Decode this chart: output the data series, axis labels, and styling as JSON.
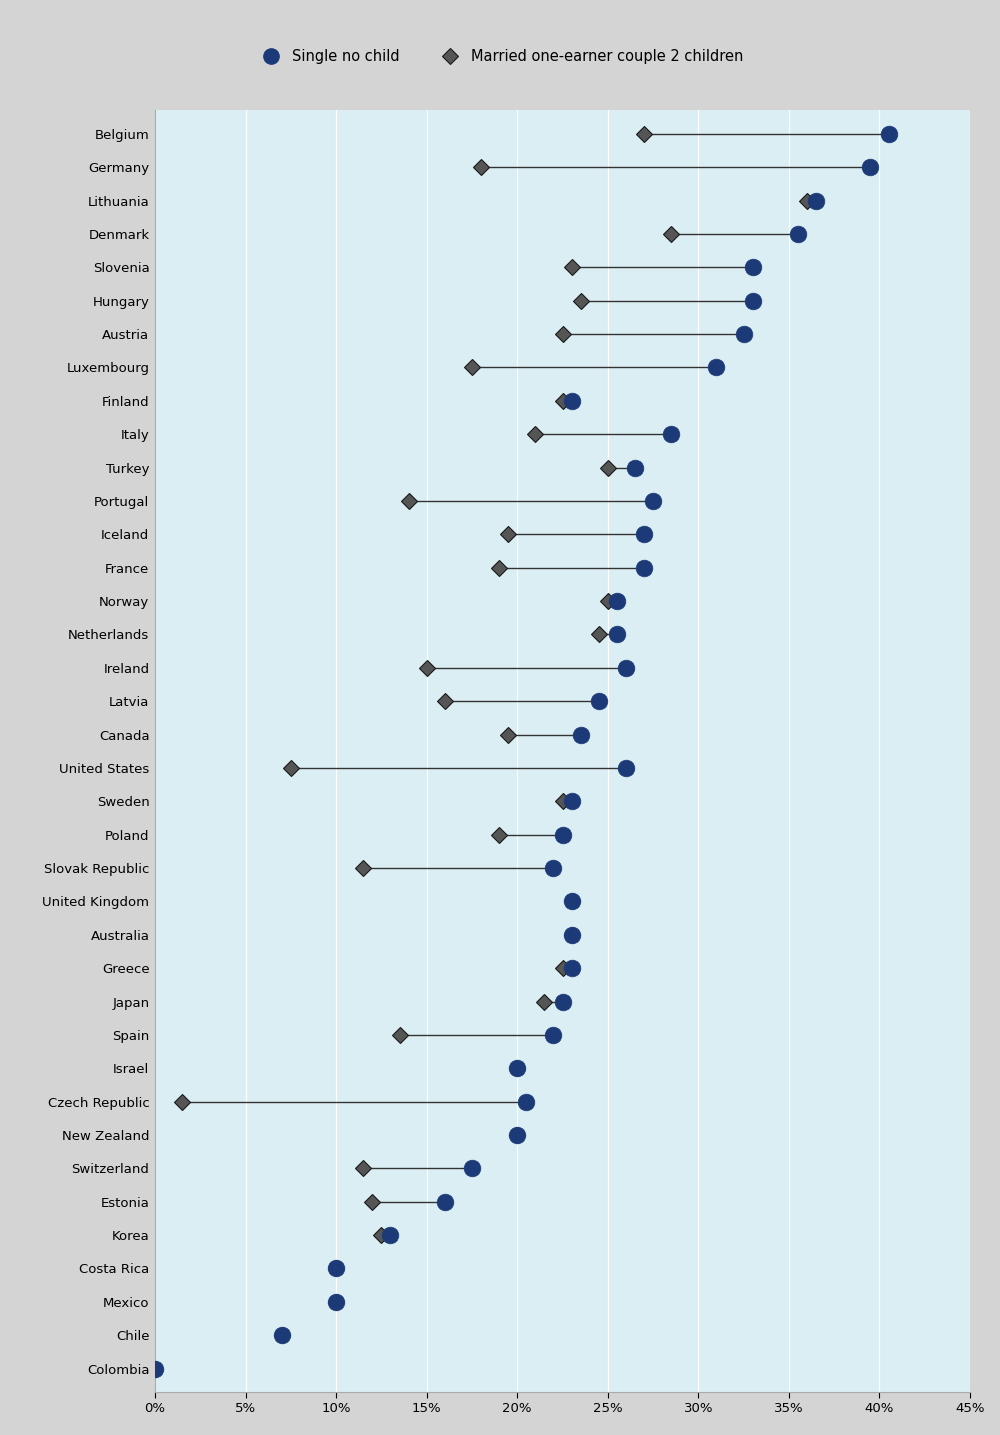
{
  "countries": [
    "Belgium",
    "Germany",
    "Lithuania",
    "Denmark",
    "Slovenia",
    "Hungary",
    "Austria",
    "Luxembourg",
    "Finland",
    "Italy",
    "Turkey",
    "Portugal",
    "Iceland",
    "France",
    "Norway",
    "Netherlands",
    "Ireland",
    "Latvia",
    "Canada",
    "United States",
    "Sweden",
    "Poland",
    "Slovak Republic",
    "United Kingdom",
    "Australia",
    "Greece",
    "Japan",
    "Spain",
    "Israel",
    "Czech Republic",
    "New Zealand",
    "Switzerland",
    "Estonia",
    "Korea",
    "Costa Rica",
    "Mexico",
    "Chile",
    "Colombia"
  ],
  "single_no_child": [
    40.5,
    39.5,
    36.5,
    35.5,
    33.0,
    33.0,
    32.5,
    31.0,
    23.0,
    28.5,
    26.5,
    27.5,
    27.0,
    27.0,
    25.5,
    25.5,
    26.0,
    24.5,
    23.5,
    26.0,
    23.0,
    22.5,
    22.0,
    23.0,
    23.0,
    23.0,
    22.5,
    22.0,
    20.0,
    20.5,
    20.0,
    17.5,
    16.0,
    13.0,
    10.0,
    10.0,
    7.0,
    0.0
  ],
  "married_couple": [
    27.0,
    18.0,
    36.0,
    28.5,
    23.0,
    23.5,
    22.5,
    17.5,
    22.5,
    21.0,
    25.0,
    14.0,
    19.5,
    19.0,
    25.0,
    24.5,
    15.0,
    16.0,
    19.5,
    7.5,
    22.5,
    19.0,
    11.5,
    23.0,
    23.0,
    22.5,
    21.5,
    13.5,
    20.0,
    1.5,
    20.0,
    11.5,
    12.0,
    12.5,
    10.0,
    10.0,
    7.0,
    0.0
  ],
  "legend_single": "Single no child",
  "legend_married": "Married one-earner couple 2 children",
  "circle_color": "#1c3a78",
  "diamond_color": "#555555",
  "plot_bg_color": "#daeef3",
  "header_bg_color": "#d4d4d4",
  "fig_bg_color": "#d4d4d4",
  "border_color": "#aaaaaa",
  "line_color": "#333333",
  "xlim": [
    0,
    45
  ],
  "xticks": [
    0,
    5,
    10,
    15,
    20,
    25,
    30,
    35,
    40,
    45
  ],
  "xtick_labels": [
    "0%",
    "5%",
    "10%",
    "15%",
    "20%",
    "25%",
    "30%",
    "35%",
    "40%",
    "45%"
  ]
}
